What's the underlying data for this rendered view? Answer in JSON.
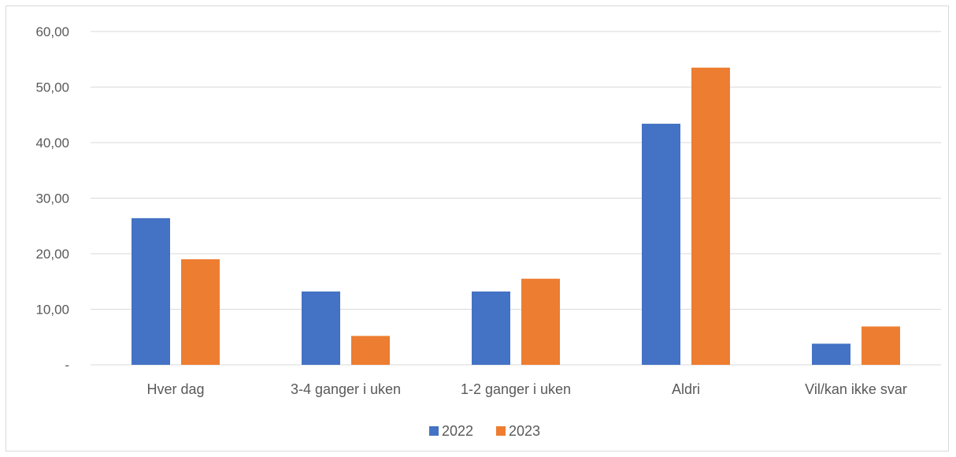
{
  "chart_data": {
    "type": "bar",
    "categories": [
      "Hver dag",
      "3-4 ganger i uken",
      "1-2 ganger i uken",
      "Aldri",
      "Vil/kan ikke svar"
    ],
    "series": [
      {
        "name": "2022",
        "values": [
          26.4,
          13.2,
          13.2,
          43.4,
          3.8
        ],
        "color": "#4472c4"
      },
      {
        "name": "2023",
        "values": [
          19.0,
          5.2,
          15.5,
          53.5,
          6.9
        ],
        "color": "#ed7d31"
      }
    ],
    "ylim": [
      0,
      60
    ],
    "yticks": [
      "-",
      "10,00",
      "20,00",
      "30,00",
      "40,00",
      "50,00",
      "60,00"
    ],
    "grid": true,
    "legend_position": "bottom",
    "title": "",
    "xlabel": "",
    "ylabel": ""
  }
}
